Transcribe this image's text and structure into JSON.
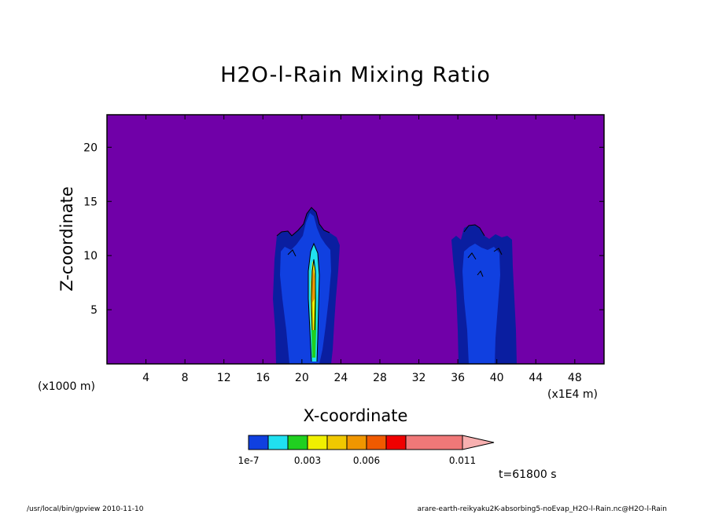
{
  "chart_data": {
    "type": "heatmap",
    "title": "H2O-l-Rain Mixing Ratio",
    "xlabel": "X-coordinate",
    "ylabel": "Z-coordinate",
    "x_unit_note": "(x1E4 m)",
    "y_unit_note": "(x1000 m)",
    "xlim": [
      0,
      51
    ],
    "ylim": [
      0,
      23
    ],
    "x_ticks": [
      4,
      8,
      12,
      16,
      20,
      24,
      28,
      32,
      36,
      40,
      44,
      48
    ],
    "y_ticks": [
      5,
      10,
      15,
      20
    ],
    "time_label": "t=61800 s",
    "colors": {
      "background": "#7000a8",
      "level_colors": [
        "#1040e0",
        "#20e0f0",
        "#20d020",
        "#f0f000",
        "#f0c800",
        "#f09600",
        "#f05a00",
        "#f00000",
        "#f07878",
        "#f8b0b0"
      ]
    },
    "colorbar": {
      "labels": [
        "1e-7",
        "0.003",
        "0.006",
        "0.011"
      ]
    },
    "features": [
      {
        "name": "left cloud column",
        "x_range": [
          17.5,
          23.5
        ],
        "z_top": 14.5,
        "max_value": "above 0.006"
      },
      {
        "name": "right cloud column",
        "x_range": [
          35.5,
          42
        ],
        "z_top": 12.8,
        "max_value": "near 1e-7"
      }
    ]
  },
  "footer": {
    "left": "/usr/local/bin/gpview  2010-11-10",
    "right": "arare-earth-reikyaku2K-absorbing5-noEvap_H2O-l-Rain.nc@H2O-l-Rain"
  }
}
